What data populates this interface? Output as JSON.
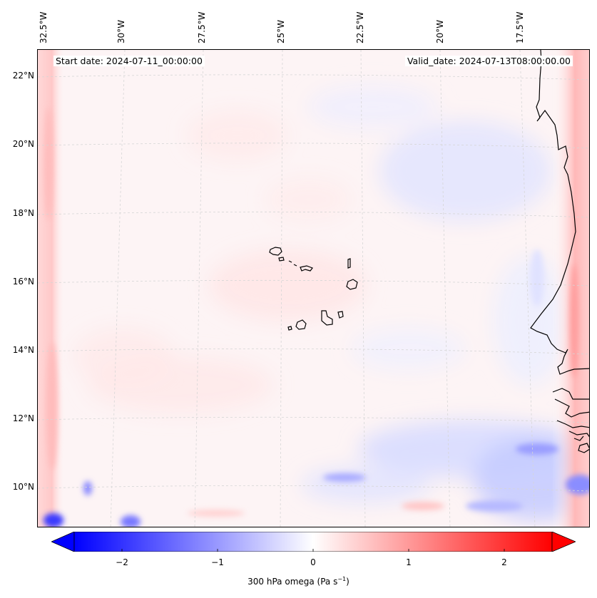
{
  "map": {
    "title_left": "Start date: 2024-07-11_00:00:00",
    "title_right": "Valid_date: 2024-07-13T08:00:00.00",
    "lon_labels": [
      "32.5°W",
      "30°W",
      "27.5°W",
      "25°W",
      "22.5°W",
      "20°W",
      "17.5°W"
    ],
    "lat_labels": [
      "22°N",
      "20°N",
      "18°N",
      "16°N",
      "14°N",
      "12°N",
      "10°N"
    ],
    "variable": "300 hPa omega",
    "colors": {
      "negative": "#0000ff",
      "positive": "#ff0000",
      "neutral": "#ffffff",
      "coast": "#000000"
    }
  },
  "colorbar": {
    "min": -2.5,
    "max": 2.5,
    "ticks": [
      "−2",
      "−1",
      "0",
      "1",
      "2"
    ],
    "tick_values": [
      -2,
      -1,
      0,
      1,
      2
    ],
    "label_main": "300 hPa omega (Pa s",
    "label_sup": "−1",
    "label_end": ")"
  }
}
